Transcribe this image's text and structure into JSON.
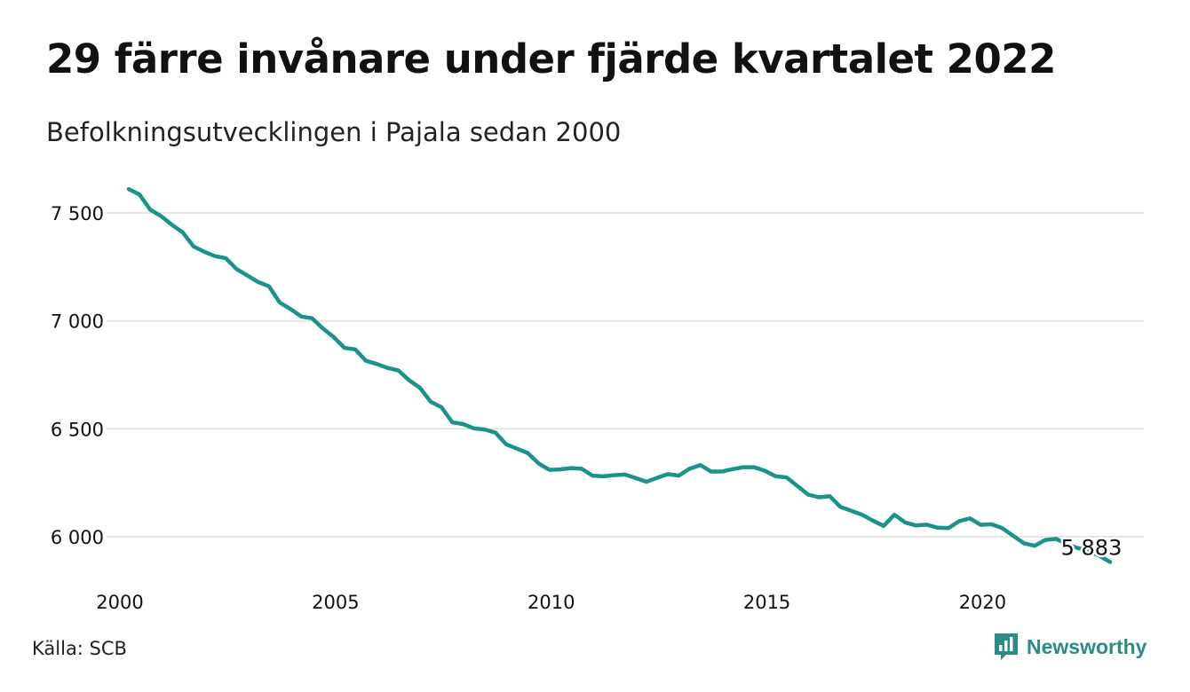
{
  "header": {
    "title": "29 färre invånare under fjärde kvartalet 2022",
    "subtitle": "Befolkningsutvecklingen i Pajala sedan 2000"
  },
  "footer": {
    "source": "Källa: SCB",
    "brand": "Newsworthy",
    "brand_icon": "newsworthy-logo-icon"
  },
  "colors": {
    "line": "#1a9488",
    "grid": "#dddddd",
    "brand": "#2a8c86"
  },
  "chart_data": {
    "type": "line",
    "x_unit": "quarter",
    "xlim": [
      "2000-Q1",
      "2022-Q4"
    ],
    "ylim": [
      5800,
      7700
    ],
    "x_ticks": [
      {
        "value": 2000,
        "label": "2000"
      },
      {
        "value": 2005,
        "label": "2005"
      },
      {
        "value": 2010,
        "label": "2010"
      },
      {
        "value": 2015,
        "label": "2015"
      },
      {
        "value": 2020,
        "label": "2020"
      }
    ],
    "y_ticks": [
      {
        "value": 6000,
        "label": "6 000"
      },
      {
        "value": 6500,
        "label": "6 500"
      },
      {
        "value": 7000,
        "label": "7 000"
      },
      {
        "value": 7500,
        "label": "7 500"
      }
    ],
    "grid": "horizontal",
    "series": [
      {
        "start": "2000-Q1",
        "values": [
          7610,
          7585,
          7515,
          7485,
          7445,
          7410,
          7345,
          7320,
          7300,
          7290,
          7240,
          7210,
          7180,
          7160,
          7085,
          7055,
          7020,
          7012,
          6965,
          6925,
          6875,
          6868,
          6815,
          6800,
          6782,
          6770,
          6725,
          6690,
          6625,
          6600,
          6530,
          6522,
          6502,
          6497,
          6482,
          6428,
          6408,
          6388,
          6340,
          6310,
          6312,
          6318,
          6315,
          6283,
          6280,
          6285,
          6288,
          6272,
          6255,
          6273,
          6290,
          6283,
          6315,
          6332,
          6302,
          6302,
          6313,
          6322,
          6322,
          6305,
          6280,
          6275,
          6235,
          6195,
          6183,
          6188,
          6138,
          6120,
          6102,
          6075,
          6050,
          6102,
          6066,
          6052,
          6056,
          6042,
          6040,
          6072,
          6085,
          6055,
          6058,
          6040,
          6005,
          5970,
          5958,
          5985,
          5990,
          5965,
          5948,
          5935,
          5912,
          5883
        ]
      }
    ],
    "end_label": "5 883"
  }
}
